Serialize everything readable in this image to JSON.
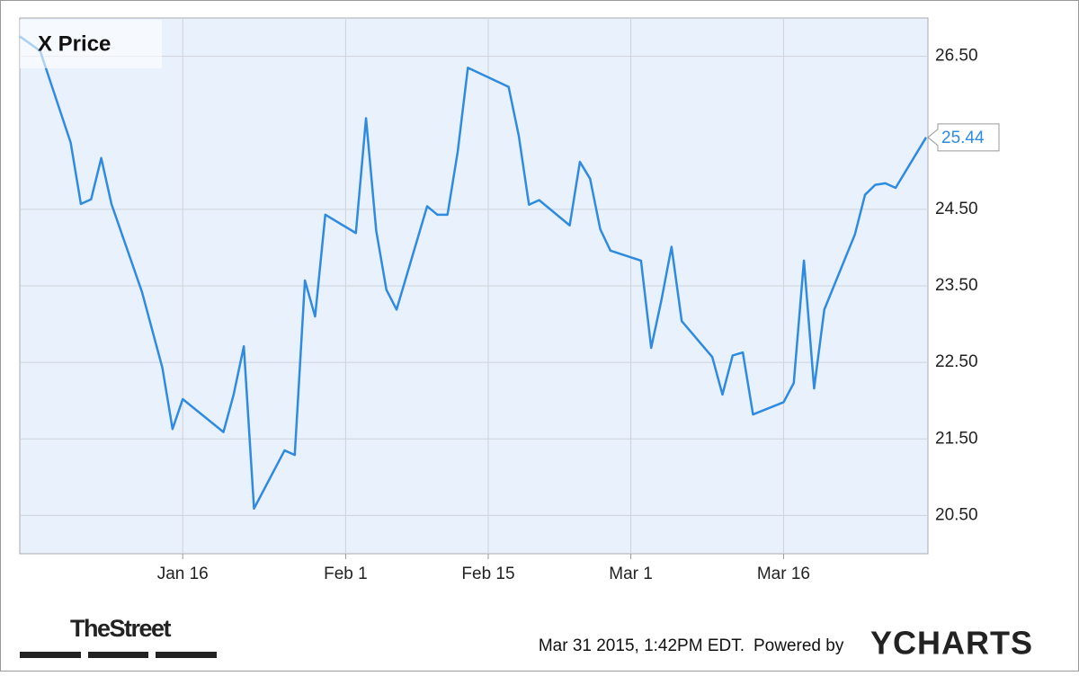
{
  "chart_data": {
    "type": "line",
    "title": "X Price",
    "x": [
      0,
      2,
      5,
      6,
      7,
      8,
      9,
      12,
      14,
      15,
      16,
      20,
      21,
      22,
      23,
      26,
      27,
      28,
      29,
      30,
      33,
      34,
      35,
      36,
      37,
      40,
      41,
      42,
      43,
      44,
      48,
      49,
      50,
      51,
      54,
      55,
      56,
      57,
      58,
      61,
      62,
      63,
      64,
      65,
      68,
      69,
      70,
      71,
      72,
      75,
      76,
      77,
      78,
      79,
      82,
      83,
      84,
      85,
      86,
      89
    ],
    "series": [
      {
        "name": "X Price",
        "color": "#2e8be0",
        "values": [
          26.76,
          26.57,
          25.37,
          24.57,
          24.63,
          25.17,
          24.57,
          23.42,
          22.43,
          21.63,
          22.02,
          21.59,
          22.08,
          22.71,
          20.59,
          21.35,
          21.29,
          23.57,
          23.1,
          24.43,
          24.19,
          25.69,
          24.22,
          23.45,
          23.19,
          24.54,
          24.43,
          24.43,
          25.25,
          26.35,
          26.1,
          25.46,
          24.56,
          24.62,
          24.29,
          25.12,
          24.9,
          24.24,
          23.96,
          23.83,
          22.69,
          23.31,
          24.01,
          23.04,
          22.57,
          22.08,
          22.59,
          22.63,
          21.82,
          21.98,
          22.23,
          23.83,
          22.16,
          23.19,
          24.17,
          24.69,
          24.82,
          24.84,
          24.78,
          25.44
        ]
      }
    ],
    "xlim": [
      0,
      89
    ],
    "xticks": [
      {
        "value": 16,
        "label": "Jan 16"
      },
      {
        "value": 32,
        "label": "Feb 1"
      },
      {
        "value": 46,
        "label": "Feb 15"
      },
      {
        "value": 60,
        "label": "Mar 1"
      },
      {
        "value": 75,
        "label": "Mar 16"
      }
    ],
    "ylim": [
      20,
      27
    ],
    "yticks": [
      {
        "value": 20.5,
        "label": "20.50"
      },
      {
        "value": 21.5,
        "label": "21.50"
      },
      {
        "value": 22.5,
        "label": "22.50"
      },
      {
        "value": 23.5,
        "label": "23.50"
      },
      {
        "value": 24.5,
        "label": "24.50"
      },
      {
        "value": 26.5,
        "label": "26.50"
      }
    ],
    "grid": true
  },
  "footer": {
    "brand": "TheStreet",
    "timestamp": "Mar 31 2015, 1:42PM EDT.",
    "powered_by": "Powered by",
    "provider": "YCHARTS"
  }
}
